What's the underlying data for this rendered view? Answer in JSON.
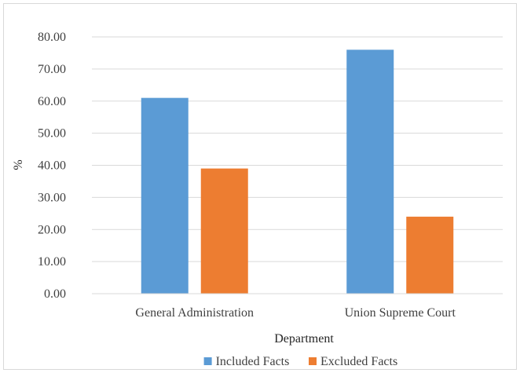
{
  "chart_data": {
    "type": "bar",
    "title": "",
    "xlabel": "Department",
    "ylabel": "%",
    "categories": [
      "General Administration",
      "Union Supreme Court"
    ],
    "series": [
      {
        "name": "Included Facts",
        "values": [
          61.0,
          76.0
        ],
        "color": "#5B9BD5"
      },
      {
        "name": "Excluded Facts",
        "values": [
          39.0,
          24.0
        ],
        "color": "#ED7D31"
      }
    ],
    "ylim": [
      0,
      80
    ],
    "yticks": [
      "0.00",
      "10.00",
      "20.00",
      "30.00",
      "40.00",
      "50.00",
      "60.00",
      "70.00",
      "80.00"
    ],
    "grid": true,
    "legend_position": "bottom"
  }
}
